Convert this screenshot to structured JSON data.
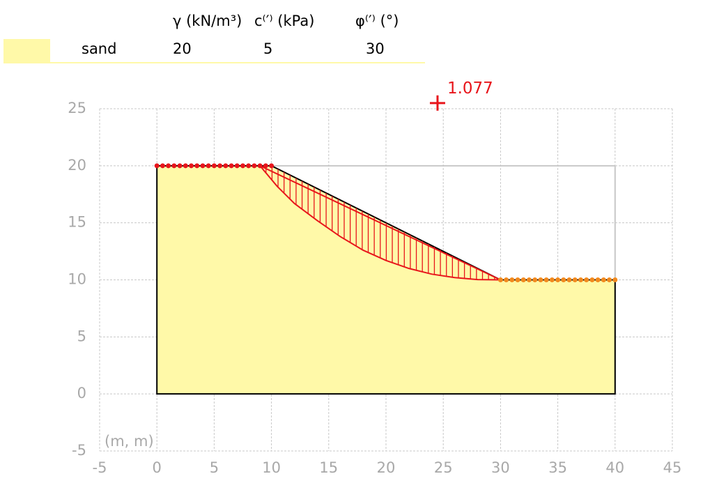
{
  "material_table": {
    "headers": [
      "γ (kN/m³)",
      "c⁽′⁾ (kPa)",
      "φ⁽′⁾ (°)"
    ],
    "rows": [
      {
        "name": "sand",
        "gamma": "20",
        "c": "5",
        "phi": "30",
        "color": "#fff9a8"
      }
    ]
  },
  "chart_data": {
    "type": "slope-stability",
    "units_label": "(m, m)",
    "xlim": [
      -5,
      45
    ],
    "ylim": [
      -5,
      25
    ],
    "x_ticks": [
      "-5",
      "0",
      "5",
      "10",
      "15",
      "20",
      "25",
      "30",
      "35",
      "40",
      "45"
    ],
    "y_ticks": [
      "-5",
      "0",
      "5",
      "10",
      "15",
      "20",
      "25"
    ],
    "grid": true,
    "soil_profile": [
      [
        0,
        0
      ],
      [
        0,
        20
      ],
      [
        10,
        20
      ],
      [
        30,
        10
      ],
      [
        40,
        10
      ],
      [
        40,
        0
      ]
    ],
    "soil_color": "#fff9a8",
    "slip_surface": [
      [
        9,
        20
      ],
      [
        10.5,
        18.2
      ],
      [
        12,
        16.7
      ],
      [
        14,
        15.2
      ],
      [
        16,
        13.8
      ],
      [
        18,
        12.6
      ],
      [
        20,
        11.7
      ],
      [
        22,
        11
      ],
      [
        24,
        10.5
      ],
      [
        26,
        10.2
      ],
      [
        28,
        10.02
      ],
      [
        30,
        10
      ]
    ],
    "critical_center": [
      24.5,
      25.5
    ],
    "factor_of_safety": "1.077",
    "crest_points": {
      "x_start": 0,
      "x_end": 10,
      "y": 20,
      "count": 21,
      "color": "#e8151b"
    },
    "toe_points": {
      "x_start": 30,
      "x_end": 40,
      "y": 10,
      "count": 21,
      "color": "#f28a1e"
    },
    "slice_count": 40,
    "accent_color": "#e8151b"
  }
}
